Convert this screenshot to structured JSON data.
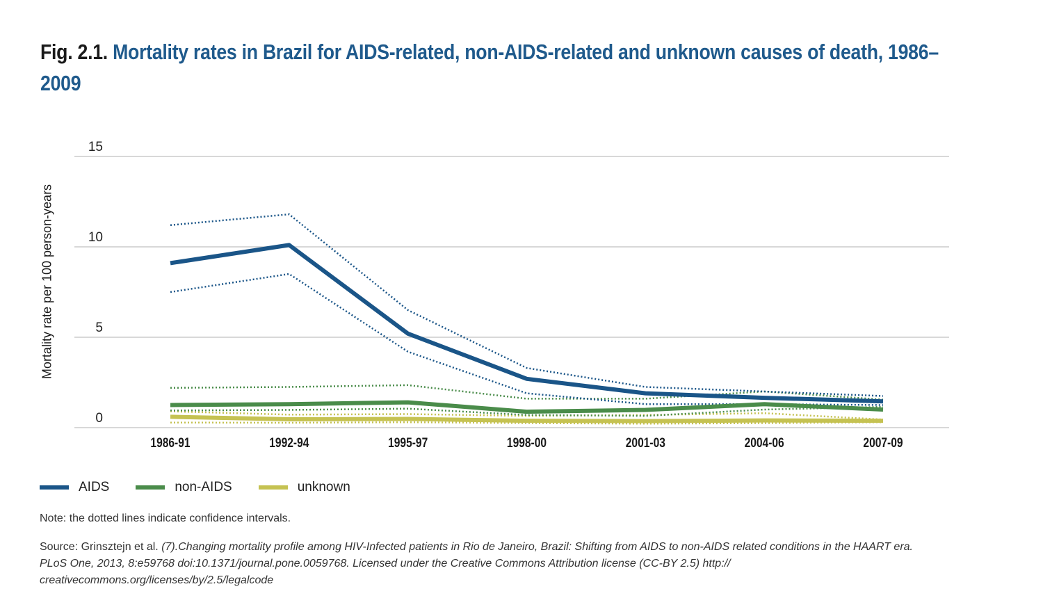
{
  "title": {
    "prefix": "Fig. 2.1.",
    "text": "Mortality rates in Brazil for AIDS-related, non-AIDS-related and unknown causes of death, 1986–2009"
  },
  "chart_data": {
    "type": "line",
    "title": "Mortality rates in Brazil for AIDS-related, non-AIDS-related and unknown causes of death, 1986–2009",
    "xlabel": "",
    "ylabel": "Mortality rate per 100 person-years",
    "ylim": [
      0,
      15
    ],
    "yticks": [
      0,
      5,
      10,
      15
    ],
    "grid": true,
    "legend_position": "bottom-left",
    "categories": [
      "1986-91",
      "1992-94",
      "1995-97",
      "1998-00",
      "2001-03",
      "2004-06",
      "2007-09"
    ],
    "series": [
      {
        "name": "AIDS",
        "color": "#1a5588",
        "values": [
          9.1,
          10.1,
          5.2,
          2.7,
          1.9,
          1.65,
          1.45
        ],
        "ci_upper": [
          11.2,
          11.8,
          6.5,
          3.3,
          2.25,
          2.0,
          1.75
        ],
        "ci_lower": [
          7.5,
          8.5,
          4.2,
          1.9,
          1.3,
          1.3,
          1.25
        ]
      },
      {
        "name": "non-AIDS",
        "color": "#4a8c4a",
        "values": [
          1.25,
          1.3,
          1.4,
          0.88,
          0.98,
          1.3,
          1.0
        ],
        "ci_upper": [
          2.2,
          2.25,
          2.35,
          1.6,
          1.6,
          2.0,
          1.55
        ],
        "ci_lower": [
          0.95,
          0.98,
          1.05,
          0.7,
          0.65,
          1.0,
          1.15
        ]
      },
      {
        "name": "unknown",
        "color": "#c5c252",
        "values": [
          0.6,
          0.46,
          0.48,
          0.38,
          0.36,
          0.4,
          0.38
        ],
        "ci_upper": [
          0.9,
          0.72,
          0.75,
          0.65,
          0.7,
          0.8,
          0.45
        ],
        "ci_lower": [
          0.28,
          0.27,
          0.3,
          0.25,
          0.22,
          0.25,
          0.3
        ]
      }
    ]
  },
  "legend": [
    {
      "label": "AIDS",
      "color": "#1a5588"
    },
    {
      "label": "non-AIDS",
      "color": "#4a8c4a"
    },
    {
      "label": "unknown",
      "color": "#c5c252"
    }
  ],
  "note": "Note: the dotted lines indicate confidence intervals.",
  "source": {
    "prefix": "Source: Grinsztejn et al. ",
    "italic": "(7).Changing mortality profile among HIV-Infected patients in Rio de Janeiro, Brazil: Shifting from AIDS to non-AIDS related conditions in the HAART era. PLoS One, 2013, 8:e59768 doi:10.1371/journal.pone.0059768. Licensed under the Creative Commons Attribution license (CC-BY 2.5) http:// creativecommons.org/licenses/by/2.5/legalcode"
  }
}
